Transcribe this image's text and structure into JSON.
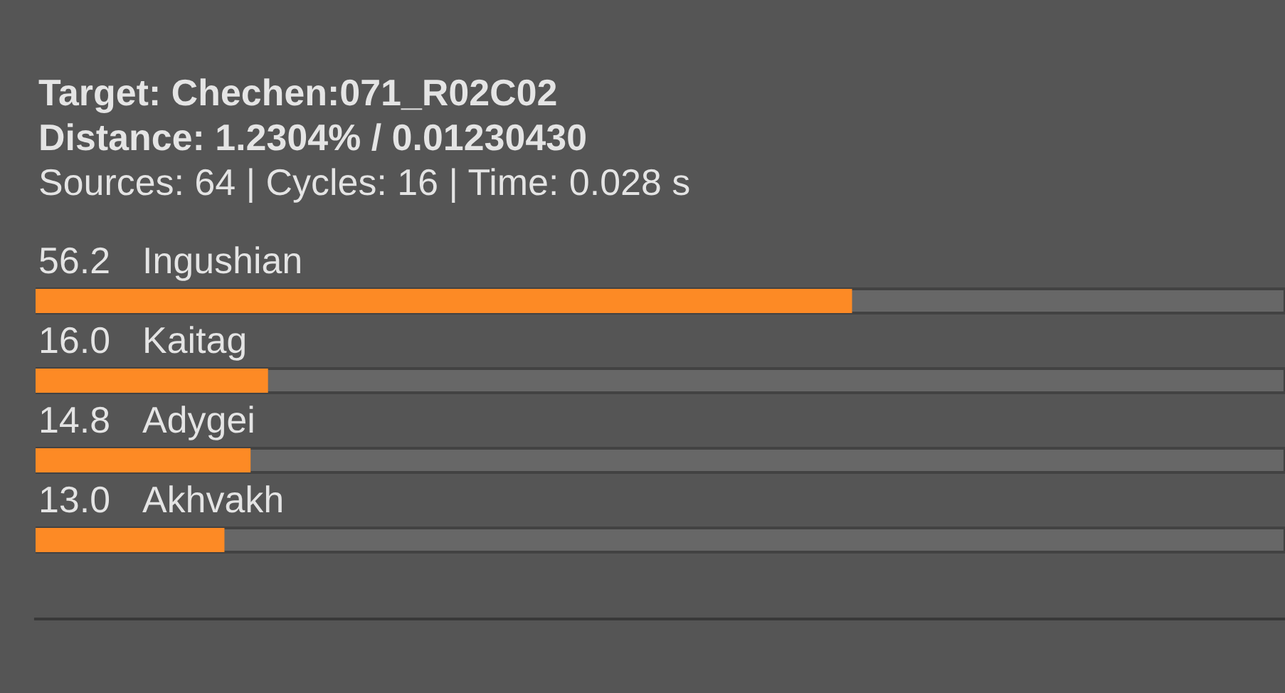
{
  "chart_data": {
    "type": "bar",
    "orientation": "horizontal",
    "title": "Target: Chechen:071_R02C02",
    "subtitle": "Distance: 1.2304% / 0.01230430",
    "annotations": [
      "Sources: 64 | Cycles: 16 | Time: 0.028 s"
    ],
    "categories": [
      "Ingushian",
      "Kaitag",
      "Adygei",
      "Akhvakh"
    ],
    "values": [
      56.2,
      16.0,
      14.8,
      13.0
    ],
    "value_labels": [
      "56.2",
      "16.0",
      "14.8",
      "13.0"
    ],
    "color": "#fd8a25",
    "xlim": [
      0,
      86
    ],
    "tick_labels": "y"
  }
}
